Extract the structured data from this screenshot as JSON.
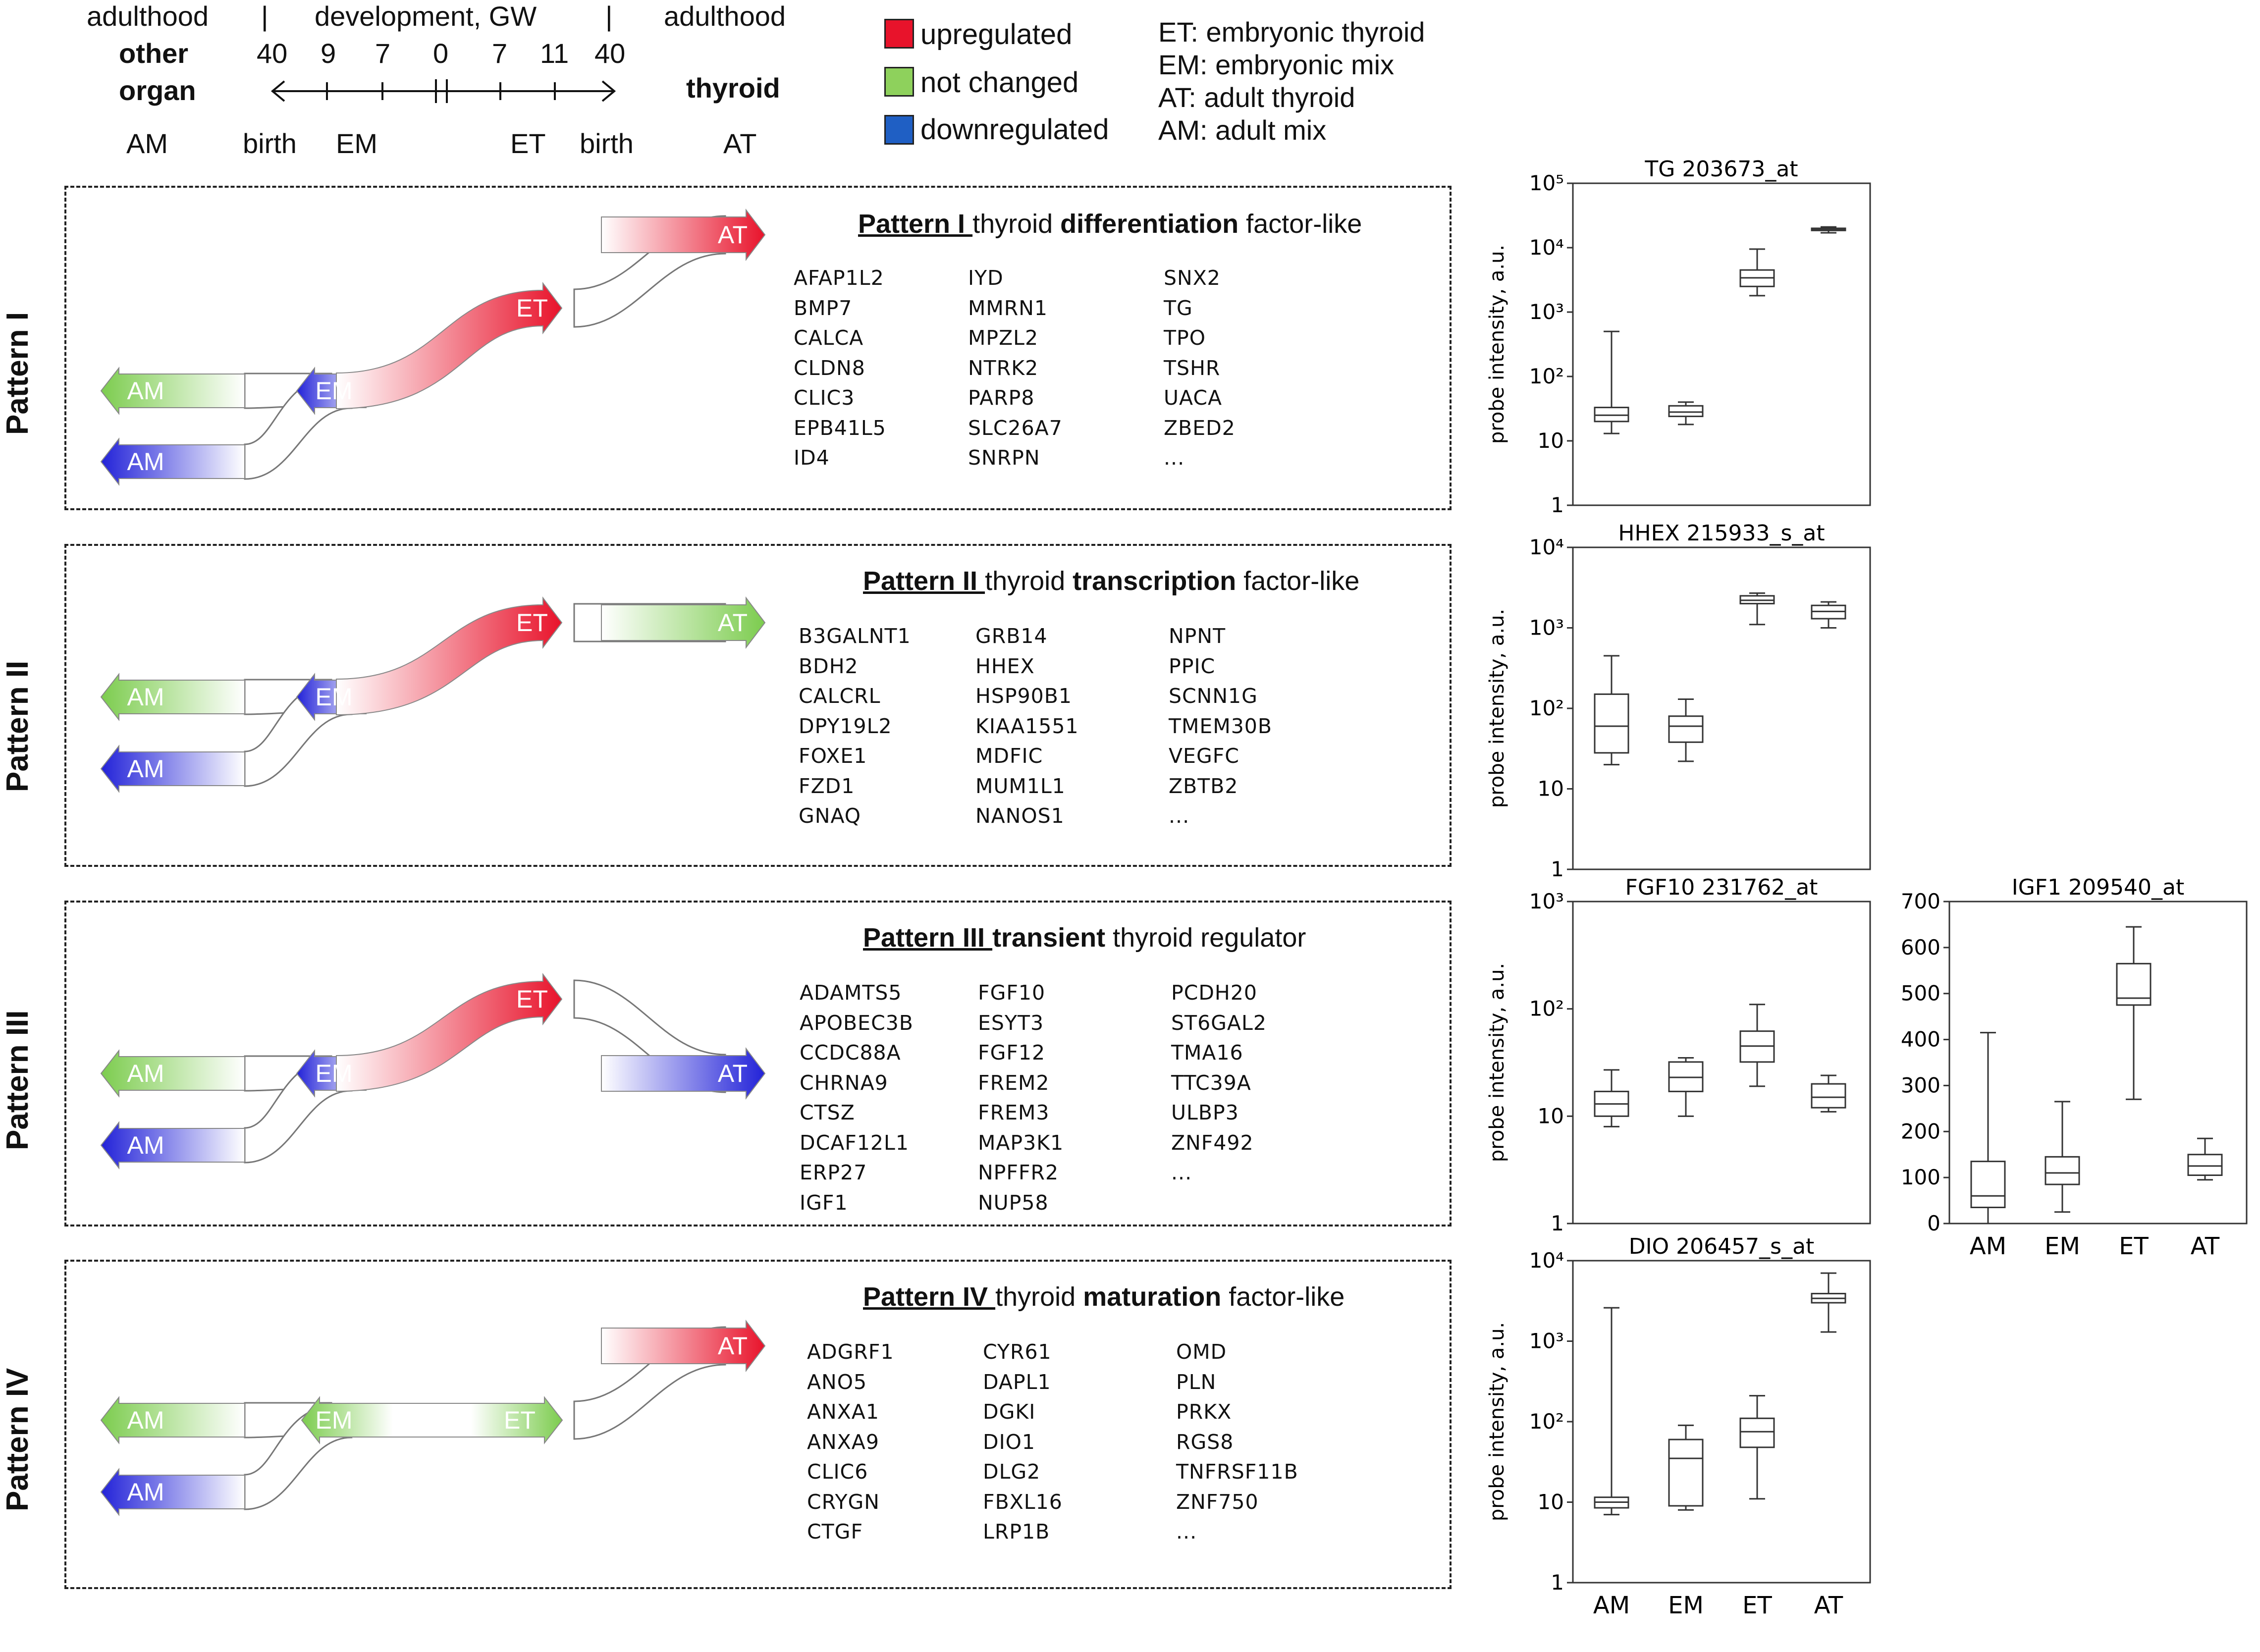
{
  "timeline": {
    "top_left": "adulthood",
    "top_mid": "development, GW",
    "top_right": "adulthood",
    "sep1": "|",
    "sep2": "|",
    "left_other": "other",
    "left_organ": "organ",
    "right_thyroid": "thyroid",
    "ticks": [
      "40",
      "9",
      "7",
      "0",
      "7",
      "11",
      "40"
    ],
    "bottom": [
      "AM",
      "birth",
      "EM",
      "ET",
      "birth",
      "AT"
    ]
  },
  "legend": [
    {
      "label": "upregulated",
      "color": "#e8132b"
    },
    {
      "label": "not changed",
      "color": "#8ed15c"
    },
    {
      "label": "downregulated",
      "color": "#1f5fc4"
    }
  ],
  "abbreviations": [
    "ET:  embryonic  thyroid",
    "EM:  embryonic mix",
    "AT:  adult thyroid",
    "AM:  adult mix"
  ],
  "colors": {
    "up": "#e8132b",
    "nc": "#7ccc4e",
    "down": "#2222d8"
  },
  "patterns": [
    {
      "side": "Pattern I",
      "title_u": "Pattern I ",
      "title_rest": "thyroid  ",
      "title_bold": "differentiation",
      "title_tail": "  factor-like",
      "labels": {
        "am1": "AM",
        "am2": "AM",
        "em": "EM",
        "et": "ET",
        "at": "AT"
      },
      "genes": [
        [
          "AFAP1L2",
          "BMP7",
          "CALCA",
          "CLDN8",
          "CLIC3",
          "EPB41L5",
          "ID4"
        ],
        [
          "IYD",
          "MMRN1",
          "MPZL2",
          "NTRK2",
          "PARP8",
          "SLC26A7",
          "SNRPN"
        ],
        [
          "SNX2",
          "TG",
          "TPO",
          "TSHR",
          "UACA",
          "ZBED2",
          "..."
        ]
      ]
    },
    {
      "side": "Pattern II",
      "title_u": "Pattern II ",
      "title_rest": " thyroid ",
      "title_bold": "transcription",
      "title_tail": " factor-like",
      "labels": {
        "am1": "AM",
        "am2": "AM",
        "em": "EM",
        "et": "ET",
        "at": "AT"
      },
      "genes": [
        [
          "B3GALNT1",
          "BDH2",
          "CALCRL",
          "DPY19L2",
          "FOXE1",
          "FZD1",
          "GNAQ"
        ],
        [
          "GRB14",
          "HHEX",
          "HSP90B1",
          "KIAA1551",
          "MDFIC",
          "MUM1L1",
          "NANOS1"
        ],
        [
          "NPNT",
          "PPIC",
          "SCNN1G",
          "TMEM30B",
          "VEGFC",
          "ZBTB2",
          "..."
        ]
      ]
    },
    {
      "side": "Pattern III",
      "title_u": "Pattern III ",
      "title_rest": " ",
      "title_bold": "transient",
      "title_tail": "  thyroid regulator",
      "labels": {
        "am1": "AM",
        "am2": "AM",
        "em": "EM",
        "et": "ET",
        "at": "AT"
      },
      "genes": [
        [
          "ADAMTS5",
          "APOBEC3B",
          "CCDC88A",
          "CHRNA9",
          "CTSZ",
          "DCAF12L1",
          "ERP27",
          "IGF1"
        ],
        [
          "FGF10",
          "ESYT3",
          "FGF12",
          "FREM2",
          "FREM3",
          "MAP3K1",
          "NPFFR2",
          "NUP58"
        ],
        [
          "PCDH20",
          "ST6GAL2",
          "TMA16",
          "TTC39A",
          "ULBP3",
          "ZNF492",
          "..."
        ]
      ]
    },
    {
      "side": "Pattern IV",
      "title_u": "Pattern IV ",
      "title_rest": " thyroid ",
      "title_bold": "maturation",
      "title_tail": " factor-like",
      "labels": {
        "am1": "AM",
        "am2": "AM",
        "em": "EM",
        "et": "ET",
        "at": "AT"
      },
      "genes": [
        [
          "ADGRF1",
          "ANO5",
          "ANXA1",
          "ANXA9",
          "CLIC6",
          "CRYGN",
          "CTGF"
        ],
        [
          "CYR61",
          "DAPL1",
          "DGKI",
          "DIO1",
          "DLG2",
          "FBXL16",
          "LRP1B"
        ],
        [
          "OMD",
          "PLN",
          "PRKX",
          "RGS8",
          "TNFRSF11B",
          "ZNF750",
          "..."
        ]
      ]
    }
  ],
  "chart_data": [
    {
      "type": "box",
      "title": "TG 203673_at",
      "scale": "log",
      "ylabel": "probe intensity, a.u.",
      "yticks": [
        "1",
        "10",
        "10²",
        "10³",
        "10⁴",
        "10⁵"
      ],
      "ylim": [
        1,
        100000
      ],
      "categories": [
        "AM",
        "EM",
        "ET",
        "AT"
      ],
      "boxes": [
        {
          "min": 13,
          "q1": 20,
          "med": 25,
          "q3": 33,
          "max": 500
        },
        {
          "min": 18,
          "q1": 24,
          "med": 28,
          "q3": 35,
          "max": 40
        },
        {
          "min": 1800,
          "q1": 2500,
          "med": 3400,
          "q3": 4500,
          "max": 9500
        },
        {
          "min": 17000,
          "q1": 18500,
          "med": 19000,
          "q3": 20000,
          "max": 21000
        }
      ]
    },
    {
      "type": "box",
      "title": "HHEX 215933_s_at",
      "scale": "log",
      "ylabel": "probe intensity, a.u.",
      "yticks": [
        "1",
        "10",
        "10²",
        "10³",
        "10⁴"
      ],
      "ylim": [
        1,
        10000
      ],
      "categories": [
        "AM",
        "EM",
        "ET",
        "AT"
      ],
      "boxes": [
        {
          "min": 20,
          "q1": 28,
          "med": 60,
          "q3": 150,
          "max": 450
        },
        {
          "min": 22,
          "q1": 38,
          "med": 60,
          "q3": 80,
          "max": 130
        },
        {
          "min": 1100,
          "q1": 2000,
          "med": 2200,
          "q3": 2500,
          "max": 2700
        },
        {
          "min": 1000,
          "q1": 1300,
          "med": 1600,
          "q3": 1900,
          "max": 2100
        }
      ]
    },
    {
      "type": "box",
      "title": "FGF10 231762_at",
      "scale": "log",
      "ylabel": "probe intensity, a.u.",
      "yticks": [
        "1",
        "10",
        "10²",
        "10³"
      ],
      "ylim": [
        1,
        1000
      ],
      "categories": [
        "AM",
        "EM",
        "ET",
        "AT"
      ],
      "boxes": [
        {
          "min": 8,
          "q1": 10,
          "med": 13,
          "q3": 17,
          "max": 27
        },
        {
          "min": 10,
          "q1": 17,
          "med": 23,
          "q3": 32,
          "max": 35
        },
        {
          "min": 19,
          "q1": 32,
          "med": 45,
          "q3": 62,
          "max": 110
        },
        {
          "min": 11,
          "q1": 12,
          "med": 15,
          "q3": 20,
          "max": 24
        }
      ]
    },
    {
      "type": "box",
      "title": "IGF1 209540_at",
      "scale": "linear",
      "yticks": [
        "0",
        "100",
        "200",
        "300",
        "400",
        "500",
        "600",
        "700"
      ],
      "ylim": [
        0,
        700
      ],
      "categories": [
        "AM",
        "EM",
        "ET",
        "AT"
      ],
      "boxes": [
        {
          "min": 0,
          "q1": 35,
          "med": 60,
          "q3": 135,
          "max": 415
        },
        {
          "min": 25,
          "q1": 85,
          "med": 110,
          "q3": 145,
          "max": 265
        },
        {
          "min": 270,
          "q1": 475,
          "med": 490,
          "q3": 565,
          "max": 645
        },
        {
          "min": 95,
          "q1": 105,
          "med": 125,
          "q3": 150,
          "max": 185
        }
      ]
    },
    {
      "type": "box",
      "title": "DIO 206457_s_at",
      "scale": "log",
      "ylabel": "probe intensity, a.u.",
      "yticks": [
        "1",
        "10",
        "10²",
        "10³",
        "10⁴"
      ],
      "ylim": [
        1,
        10000
      ],
      "categories": [
        "AM",
        "EM",
        "ET",
        "AT"
      ],
      "boxes": [
        {
          "min": 7,
          "q1": 8.5,
          "med": 10,
          "q3": 11.5,
          "max": 2600
        },
        {
          "min": 8,
          "q1": 9,
          "med": 35,
          "q3": 60,
          "max": 90
        },
        {
          "min": 11,
          "q1": 48,
          "med": 75,
          "q3": 110,
          "max": 210
        },
        {
          "min": 1300,
          "q1": 3000,
          "med": 3400,
          "q3": 3900,
          "max": 7000
        }
      ]
    }
  ]
}
